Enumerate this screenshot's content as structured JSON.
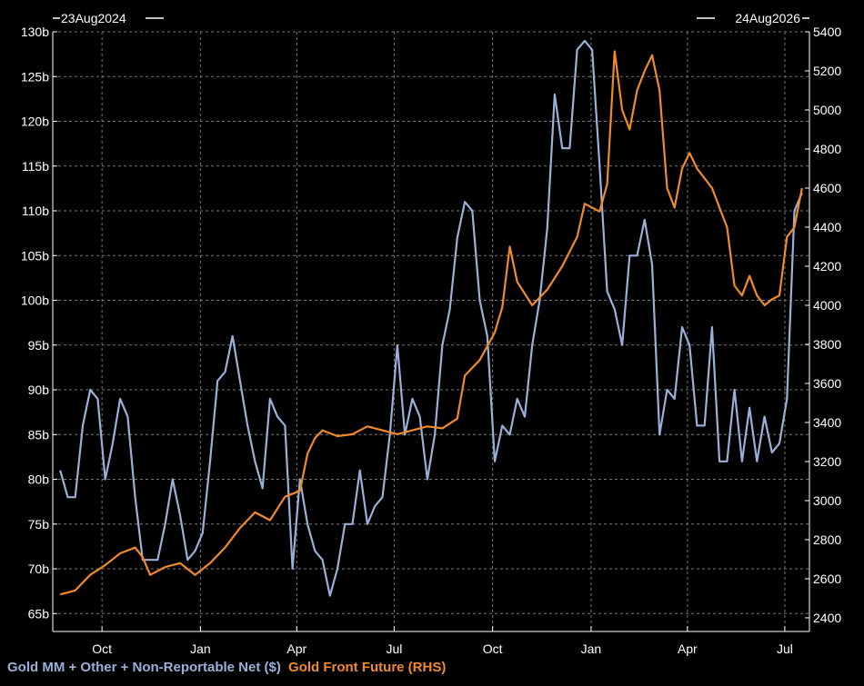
{
  "chart_data": {
    "type": "line",
    "start_date_label": "23Aug2024",
    "end_date_label": "24Aug2026",
    "x_ticks": [
      "Oct",
      "Jan",
      "Apr",
      "Jul",
      "Oct",
      "Jan",
      "Apr",
      "Jul"
    ],
    "y_left": {
      "ticks": [
        "130b",
        "125b",
        "120b",
        "115b",
        "110b",
        "105b",
        "100b",
        "95b",
        "90b",
        "85b",
        "80b",
        "75b",
        "70b",
        "65b"
      ],
      "ylim": [
        63,
        130
      ]
    },
    "y_right": {
      "ticks": [
        "5400",
        "5200",
        "5000",
        "4800",
        "4600",
        "4400",
        "4200",
        "4000",
        "3800",
        "3600",
        "3400",
        "3200",
        "3000",
        "2800",
        "2600",
        "2400"
      ],
      "ylim": [
        2330,
        5400
      ]
    },
    "grid": true,
    "legend": "bottom-left",
    "series": [
      {
        "name": "Gold MM + Other + Non-Reportable Net ($)",
        "axis": "left",
        "color": "#9bb0d8",
        "points": [
          [
            "2024-08-23",
            81
          ],
          [
            "2024-08-30",
            78
          ],
          [
            "2024-09-06",
            78
          ],
          [
            "2024-09-13",
            86
          ],
          [
            "2024-09-20",
            90
          ],
          [
            "2024-09-27",
            89
          ],
          [
            "2024-10-04",
            80
          ],
          [
            "2024-10-11",
            84
          ],
          [
            "2024-10-18",
            89
          ],
          [
            "2024-10-25",
            87
          ],
          [
            "2024-11-01",
            78
          ],
          [
            "2024-11-08",
            71
          ],
          [
            "2024-11-15",
            71
          ],
          [
            "2024-11-22",
            71
          ],
          [
            "2024-11-29",
            75
          ],
          [
            "2024-12-06",
            80
          ],
          [
            "2024-12-13",
            76
          ],
          [
            "2024-12-20",
            71
          ],
          [
            "2024-12-27",
            72
          ],
          [
            "2025-01-03",
            74
          ],
          [
            "2025-01-10",
            82
          ],
          [
            "2025-01-17",
            91
          ],
          [
            "2025-01-24",
            92
          ],
          [
            "2025-01-31",
            96
          ],
          [
            "2025-02-07",
            91
          ],
          [
            "2025-02-14",
            86
          ],
          [
            "2025-02-21",
            82
          ],
          [
            "2025-02-28",
            79
          ],
          [
            "2025-03-07",
            89
          ],
          [
            "2025-03-14",
            87
          ],
          [
            "2025-03-21",
            86
          ],
          [
            "2025-03-28",
            70
          ],
          [
            "2025-04-04",
            80
          ],
          [
            "2025-04-11",
            75
          ],
          [
            "2025-04-18",
            72
          ],
          [
            "2025-04-25",
            71
          ],
          [
            "2025-05-02",
            67
          ],
          [
            "2025-05-09",
            70
          ],
          [
            "2025-05-16",
            75
          ],
          [
            "2025-05-23",
            75
          ],
          [
            "2025-05-30",
            81
          ],
          [
            "2025-06-06",
            75
          ],
          [
            "2025-06-13",
            77
          ],
          [
            "2025-06-20",
            78
          ],
          [
            "2025-06-27",
            85
          ],
          [
            "2025-07-04",
            95
          ],
          [
            "2025-07-11",
            85
          ],
          [
            "2025-07-18",
            89
          ],
          [
            "2025-07-25",
            87
          ],
          [
            "2025-08-01",
            80
          ],
          [
            "2025-08-08",
            85
          ],
          [
            "2025-08-15",
            95
          ],
          [
            "2025-08-22",
            99
          ],
          [
            "2025-08-29",
            107
          ],
          [
            "2025-09-05",
            111
          ],
          [
            "2025-09-12",
            110
          ],
          [
            "2025-09-19",
            100
          ],
          [
            "2025-09-26",
            96
          ],
          [
            "2025-10-03",
            82
          ],
          [
            "2025-10-10",
            86
          ],
          [
            "2025-10-17",
            85
          ],
          [
            "2025-10-24",
            89
          ],
          [
            "2025-10-31",
            87
          ],
          [
            "2025-11-07",
            95
          ],
          [
            "2025-11-14",
            100
          ],
          [
            "2025-11-21",
            108
          ],
          [
            "2025-11-28",
            123
          ],
          [
            "2025-12-05",
            117
          ],
          [
            "2025-12-12",
            117
          ],
          [
            "2025-12-19",
            128
          ],
          [
            "2025-12-26",
            129
          ],
          [
            "2026-01-02",
            128
          ],
          [
            "2026-01-09",
            115
          ],
          [
            "2026-01-16",
            101
          ],
          [
            "2026-01-23",
            99
          ],
          [
            "2026-01-30",
            95
          ],
          [
            "2026-02-06",
            105
          ],
          [
            "2026-02-13",
            105
          ],
          [
            "2026-02-20",
            109
          ],
          [
            "2026-02-27",
            104
          ],
          [
            "2026-03-06",
            85
          ],
          [
            "2026-03-13",
            90
          ],
          [
            "2026-03-20",
            89
          ],
          [
            "2026-03-27",
            97
          ],
          [
            "2026-04-03",
            95
          ],
          [
            "2026-04-10",
            86
          ],
          [
            "2026-04-17",
            86
          ],
          [
            "2026-04-24",
            97
          ],
          [
            "2026-05-01",
            82
          ],
          [
            "2026-05-08",
            82
          ],
          [
            "2026-05-15",
            90
          ],
          [
            "2026-05-22",
            82
          ],
          [
            "2026-05-29",
            88
          ],
          [
            "2026-06-05",
            82
          ],
          [
            "2026-06-12",
            87
          ],
          [
            "2026-06-19",
            83
          ],
          [
            "2026-06-26",
            84
          ],
          [
            "2026-07-03",
            89
          ],
          [
            "2026-07-10",
            110
          ],
          [
            "2026-07-17",
            112
          ]
        ]
      },
      {
        "name": "Gold Front Future (RHS)",
        "axis": "right",
        "color": "#f08a2a",
        "points": [
          [
            "2024-08-23",
            2520
          ],
          [
            "2024-09-06",
            2540
          ],
          [
            "2024-09-20",
            2620
          ],
          [
            "2024-10-04",
            2670
          ],
          [
            "2024-10-18",
            2730
          ],
          [
            "2024-11-01",
            2760
          ],
          [
            "2024-11-08",
            2710
          ],
          [
            "2024-11-15",
            2620
          ],
          [
            "2024-11-29",
            2660
          ],
          [
            "2024-12-13",
            2680
          ],
          [
            "2024-12-27",
            2620
          ],
          [
            "2025-01-10",
            2680
          ],
          [
            "2025-01-24",
            2760
          ],
          [
            "2025-02-07",
            2860
          ],
          [
            "2025-02-21",
            2940
          ],
          [
            "2025-03-07",
            2900
          ],
          [
            "2025-03-21",
            3020
          ],
          [
            "2025-04-04",
            3050
          ],
          [
            "2025-04-11",
            3240
          ],
          [
            "2025-04-18",
            3320
          ],
          [
            "2025-04-25",
            3360
          ],
          [
            "2025-05-09",
            3330
          ],
          [
            "2025-05-23",
            3340
          ],
          [
            "2025-06-06",
            3380
          ],
          [
            "2025-06-20",
            3360
          ],
          [
            "2025-07-04",
            3340
          ],
          [
            "2025-07-18",
            3360
          ],
          [
            "2025-08-01",
            3380
          ],
          [
            "2025-08-15",
            3370
          ],
          [
            "2025-08-29",
            3420
          ],
          [
            "2025-09-05",
            3640
          ],
          [
            "2025-09-19",
            3720
          ],
          [
            "2025-10-03",
            3860
          ],
          [
            "2025-10-10",
            3990
          ],
          [
            "2025-10-17",
            4300
          ],
          [
            "2025-10-24",
            4120
          ],
          [
            "2025-11-07",
            4000
          ],
          [
            "2025-11-21",
            4080
          ],
          [
            "2025-12-05",
            4200
          ],
          [
            "2025-12-19",
            4350
          ],
          [
            "2025-12-26",
            4520
          ],
          [
            "2026-01-09",
            4480
          ],
          [
            "2026-01-16",
            4620
          ],
          [
            "2026-01-23",
            5300
          ],
          [
            "2026-01-30",
            5000
          ],
          [
            "2026-02-06",
            4900
          ],
          [
            "2026-02-13",
            5100
          ],
          [
            "2026-02-20",
            5200
          ],
          [
            "2026-02-27",
            5280
          ],
          [
            "2026-03-06",
            5100
          ],
          [
            "2026-03-13",
            4600
          ],
          [
            "2026-03-20",
            4500
          ],
          [
            "2026-03-27",
            4700
          ],
          [
            "2026-04-03",
            4780
          ],
          [
            "2026-04-10",
            4700
          ],
          [
            "2026-04-17",
            4650
          ],
          [
            "2026-04-24",
            4600
          ],
          [
            "2026-05-01",
            4500
          ],
          [
            "2026-05-08",
            4400
          ],
          [
            "2026-05-15",
            4100
          ],
          [
            "2026-05-22",
            4050
          ],
          [
            "2026-05-29",
            4150
          ],
          [
            "2026-06-05",
            4050
          ],
          [
            "2026-06-12",
            4000
          ],
          [
            "2026-06-19",
            4030
          ],
          [
            "2026-06-26",
            4050
          ],
          [
            "2026-07-03",
            4350
          ],
          [
            "2026-07-10",
            4400
          ],
          [
            "2026-07-17",
            4600
          ]
        ]
      }
    ]
  }
}
